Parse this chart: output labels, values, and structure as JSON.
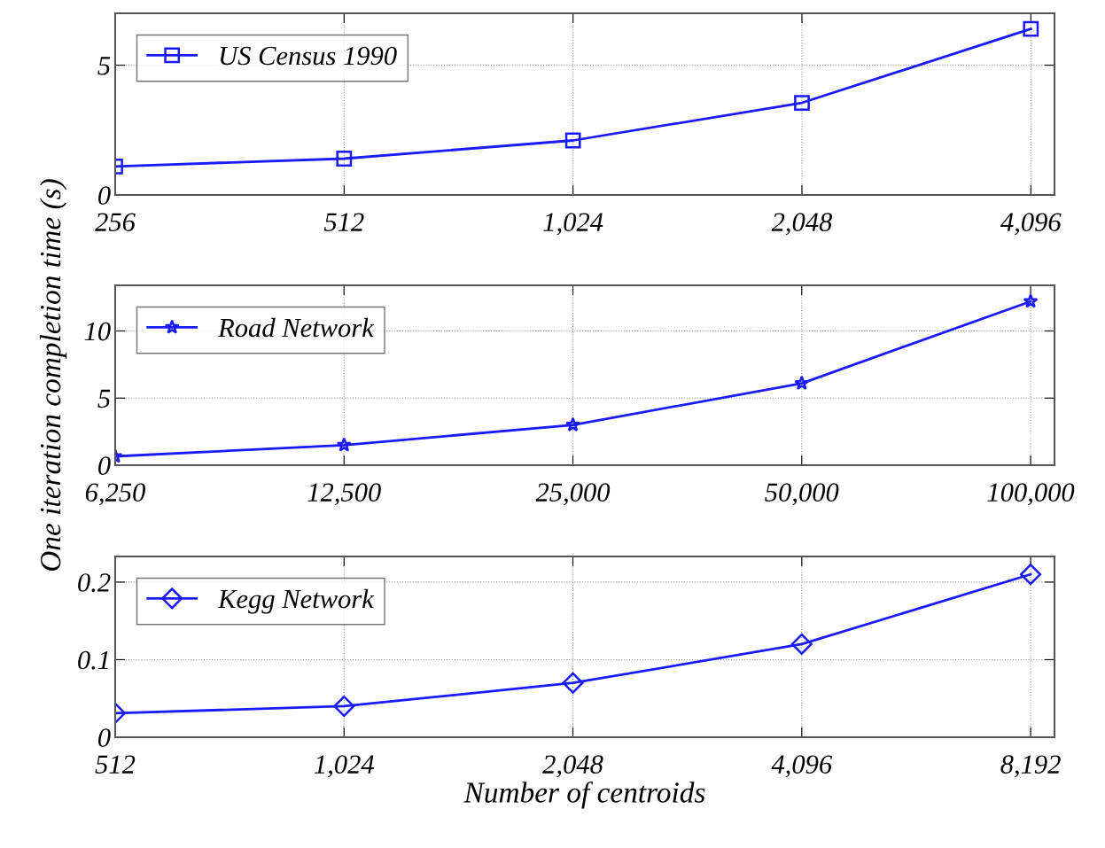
{
  "chart_data": [
    {
      "type": "line",
      "x": [
        256,
        512,
        1024,
        2048,
        4096
      ],
      "series": [
        {
          "name": "US Census 1990",
          "color": "#1a1aff",
          "values": [
            1.1,
            1.4,
            2.1,
            3.55,
            6.4
          ]
        }
      ],
      "log": "x",
      "xlim": [
        256,
        4400
      ],
      "xticks": [
        256,
        512,
        {
          "value": 1024,
          "label": "1,024"
        },
        {
          "value": 2048,
          "label": "2,048"
        },
        {
          "value": 4096,
          "label": "4,096"
        }
      ],
      "ylim": [
        0,
        7
      ],
      "yticks": [
        0,
        5
      ],
      "grid": true,
      "legend": "top left",
      "marker": "square",
      "line_style": "solid"
    },
    {
      "type": "line",
      "x": [
        6250,
        12500,
        25000,
        50000,
        100000
      ],
      "series": [
        {
          "name": "Road Network",
          "color": "#1a1aff",
          "values": [
            0.66,
            1.5,
            3.0,
            6.1,
            12.2
          ]
        }
      ],
      "log": "x",
      "xlim": [
        6250,
        107500
      ],
      "xticks": [
        {
          "value": 6250,
          "label": "6,250"
        },
        {
          "value": 12500,
          "label": "12,500"
        },
        {
          "value": 25000,
          "label": "25,000"
        },
        {
          "value": 50000,
          "label": "50,000"
        },
        {
          "value": 100000,
          "label": "100,000"
        }
      ],
      "ylim": [
        0,
        13.4
      ],
      "yticks": [
        0,
        5,
        10
      ],
      "ylabel": "One iteration completion time (s)",
      "grid": true,
      "legend": "top left",
      "marker": "star",
      "line_style": "solid"
    },
    {
      "type": "line",
      "x": [
        512,
        1024,
        2048,
        4096,
        8192
      ],
      "series": [
        {
          "name": "Kegg Network",
          "color": "#1a1aff",
          "values": [
            0.031,
            0.04,
            0.07,
            0.12,
            0.21
          ]
        }
      ],
      "log": "x",
      "xlim": [
        512,
        8806
      ],
      "xticks": [
        512,
        {
          "value": 1024,
          "label": "1,024"
        },
        {
          "value": 2048,
          "label": "2,048"
        },
        {
          "value": 4096,
          "label": "4,096"
        },
        {
          "value": 8192,
          "label": "8,192"
        }
      ],
      "ylim": [
        0,
        0.233
      ],
      "yticks": [
        0,
        0.1,
        0.2
      ],
      "xlabel": "Number of centroids",
      "grid": true,
      "legend": "top left",
      "marker": "diamond",
      "line_style": "solid"
    }
  ]
}
